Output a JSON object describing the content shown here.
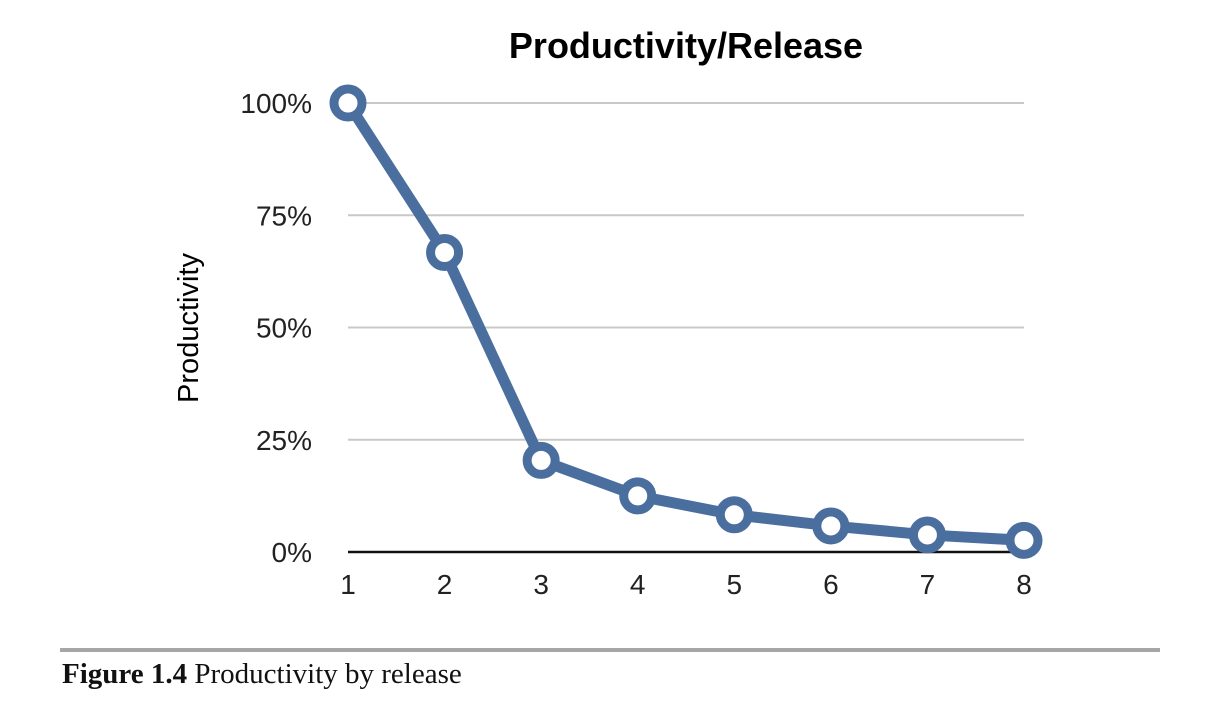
{
  "chart_data": {
    "type": "line",
    "title": "Productivity/Release",
    "xlabel": "",
    "ylabel": "Productivity",
    "categories": [
      "1",
      "2",
      "3",
      "4",
      "5",
      "6",
      "7",
      "8"
    ],
    "x": [
      1,
      2,
      3,
      4,
      5,
      6,
      7,
      8
    ],
    "series": [
      {
        "values": [
          100,
          66.7,
          20.4,
          12.5,
          8.3,
          5.8,
          3.8,
          2.6
        ]
      }
    ],
    "ylim": [
      0,
      100
    ],
    "yticks": [
      "0%",
      "25%",
      "50%",
      "75%",
      "100%"
    ],
    "ytick_values": [
      0,
      25,
      50,
      75,
      100
    ],
    "grid": true,
    "legend": "none",
    "colors": {
      "series": "#4a6f9f",
      "marker_fill": "#ffffff"
    }
  },
  "caption": {
    "figure_number": "Figure 1.4",
    "text": "Productivity by release"
  }
}
